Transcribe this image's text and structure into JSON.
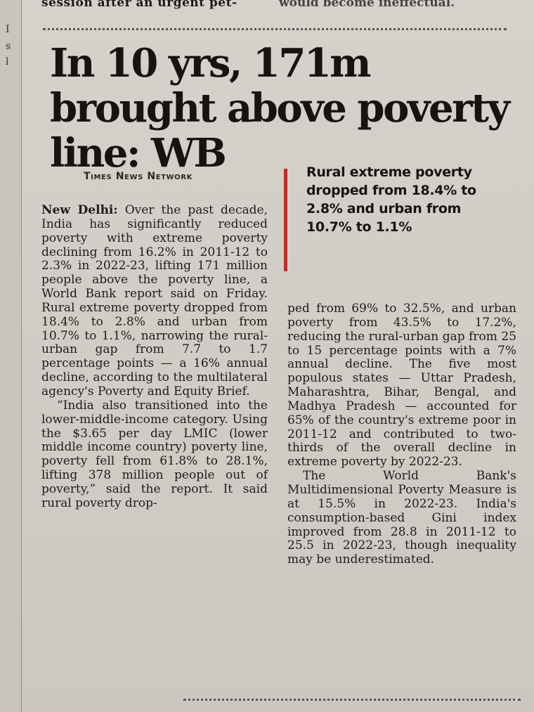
{
  "previous_article": {
    "left_fragment": "session after an urgent pet-",
    "right_fragment": "would become ineffectual."
  },
  "margin_glyphs": [
    "I",
    "s",
    "l"
  ],
  "headline": "In 10 yrs, 171m brought above poverty line: WB",
  "byline": "Times News Network",
  "pullquote": "Rural extreme poverty dropped from 18.4% to 2.8% and urban from 10.7% to 1.1%",
  "body": {
    "dateline": "New Delhi:",
    "paragraph1": "Over the past decade, India has significantly reduced poverty with extreme poverty declining from 16.2% in 2011-12 to 2.3% in 2022-23, lifting 171 million people above the poverty line, a World Bank report said on Friday. Rural extreme poverty dropped from 18.4% to 2.8% and urban from 10.7% to 1.1%, narrowing the rural-urban gap from 7.7 to 1.7 percentage points — a 16% annual decline, according to the multilateral agency's Poverty and Equity Brief.",
    "paragraph2": "“India also transitioned into the lower-middle-income category. Using the $3.65 per day LMIC (lower middle income country) poverty line, poverty fell from 61.8% to 28.1%, lifting 378 million people out of poverty,” said the report. It said rural poverty drop-",
    "paragraph2_cont": "ped from 69% to 32.5%, and urban poverty from 43.5% to 17.2%, reducing the rural-urban gap from 25 to 15 percentage points with a 7% annual decline. The five most populous states — Uttar Pradesh, Maharashtra, Bihar, Bengal, and Madhya Pradesh — accounted for 65% of the country's extreme poor in 2011-12 and contributed to two-thirds of the overall decline in extreme poverty by 2022-23.",
    "paragraph3": "The World Bank's Multidimensional Poverty Measure is at 15.5% in 2022-23. India's consumption-based Gini index improved from 28.8 in 2011-12 to 25.5 in 2022-23, though inequality may be underestimated."
  },
  "colors": {
    "pullquote_rule": "#b6322b",
    "paper": "#d4d0c9"
  }
}
